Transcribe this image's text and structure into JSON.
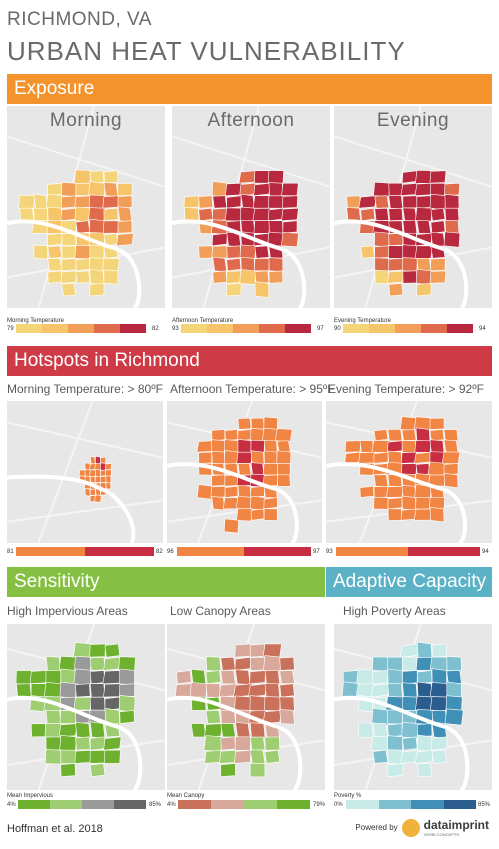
{
  "header": {
    "city": "RICHMOND, VA",
    "title": "URBAN HEAT VULNERABILITY"
  },
  "colors": {
    "exposure": "#f4922c",
    "hotspots": "#ce3a45",
    "sensitivity": "#85c043",
    "adaptive": "#5bb1c5"
  },
  "exposure": {
    "label": "Exposure",
    "panels": [
      {
        "title": "Morning",
        "legend_title": "Morning Temperature",
        "min": "79",
        "max": "82",
        "colors": [
          "#f5d57a",
          "#f6c56a",
          "#f19f58",
          "#e06b4c",
          "#b8293f"
        ]
      },
      {
        "title": "Afternoon",
        "legend_title": "Afternoon Temperature",
        "min": "93",
        "max": "97",
        "colors": [
          "#f5d57a",
          "#f6c56a",
          "#f19f58",
          "#e06b4c",
          "#b8293f"
        ]
      },
      {
        "title": "Evening",
        "legend_title": "Evening Temperature",
        "min": "90",
        "max": "94",
        "colors": [
          "#f5d57a",
          "#f6c56a",
          "#f19f58",
          "#e06b4c",
          "#b8293f"
        ]
      }
    ]
  },
  "hotspots": {
    "label": "Hotspots in Richmond",
    "panels": [
      {
        "label": "Morning Temperature: > 80ºF",
        "min": "81",
        "max": "82",
        "colors": [
          "#f18544",
          "#c82e42"
        ]
      },
      {
        "label": "Afternoon Temperature: > 95ºF",
        "min": "96",
        "max": "97",
        "colors": [
          "#f18544",
          "#c82e42"
        ]
      },
      {
        "label": "Evening Temperature: > 92ºF",
        "min": "93",
        "max": "94",
        "colors": [
          "#f18544",
          "#c82e42"
        ]
      }
    ]
  },
  "sensitivity": {
    "label": "Sensitivity",
    "panels": [
      {
        "label": "High Impervious Areas",
        "legend_title": "Mean Impervious",
        "min": "4%",
        "max": "85%",
        "colors": [
          "#6db12f",
          "#9fce72",
          "#9a9a9a",
          "#666666"
        ]
      },
      {
        "label": "Low Canopy Areas",
        "legend_title": "Mean Canopy",
        "min": "4%",
        "max": "79%",
        "colors": [
          "#c9715a",
          "#d8a89b",
          "#9fce72",
          "#6db12f"
        ]
      }
    ]
  },
  "adaptive": {
    "label": "Adaptive Capacity",
    "panels": [
      {
        "label": "High Poverty Areas",
        "legend_title": "Poverty %",
        "min": "0%",
        "max": "85%",
        "colors": [
          "#c9ebe7",
          "#7fc0d0",
          "#3f8fb6",
          "#2b5e8f"
        ]
      }
    ]
  },
  "footer": {
    "citation": "Hoffman et al. 2018",
    "powered_by": "Powered by",
    "logo": "dataimprint",
    "logo_sub": "VERBI CONCEPTS"
  }
}
